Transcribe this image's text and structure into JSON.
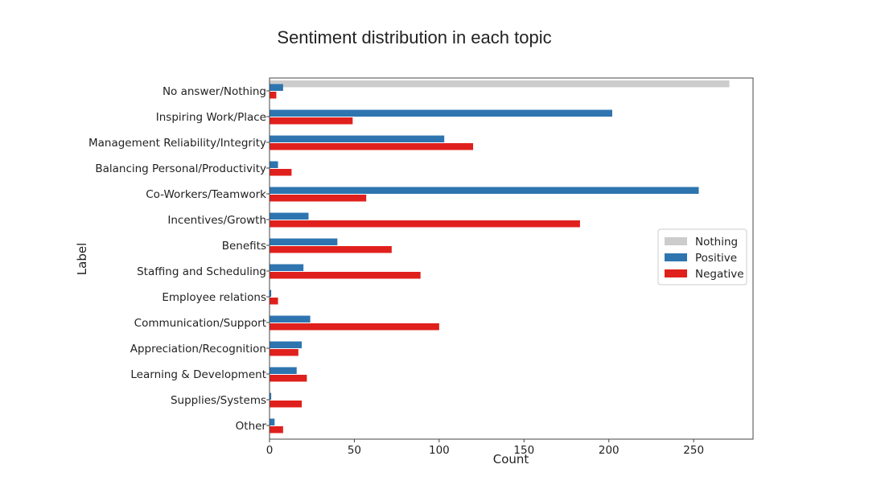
{
  "page_title": "Sentiment distribution in each topic",
  "chart_data": {
    "type": "bar",
    "orientation": "horizontal",
    "title": "Sentiment distribution in each topic",
    "xlabel": "Count",
    "ylabel": "Label",
    "xlim": [
      0,
      285
    ],
    "xticks": [
      0,
      50,
      100,
      150,
      200,
      250
    ],
    "grid": false,
    "legend_placement": "center-right",
    "categories": [
      "No answer/Nothing",
      "Inspiring Work/Place",
      "Management Reliability/Integrity",
      "Balancing Personal/Productivity",
      "Co-Workers/Teamwork",
      "Incentives/Growth",
      "Benefits",
      "Staffing and Scheduling",
      "Employee relations",
      "Communication/Support",
      "Appreciation/Recognition",
      "Learning & Development",
      "Supplies/Systems",
      "Other"
    ],
    "series": [
      {
        "name": "Nothing",
        "color": "#cccccc",
        "values": [
          271,
          0,
          0,
          0,
          0,
          0,
          0,
          0,
          0,
          0,
          0,
          0,
          0,
          0
        ]
      },
      {
        "name": "Positive",
        "color": "#2e75b0",
        "values": [
          8,
          202,
          103,
          5,
          253,
          23,
          40,
          20,
          1,
          24,
          19,
          16,
          1,
          3
        ]
      },
      {
        "name": "Negative",
        "color": "#e0201c",
        "values": [
          4,
          49,
          120,
          13,
          57,
          183,
          72,
          89,
          5,
          100,
          17,
          22,
          19,
          8
        ]
      }
    ]
  }
}
